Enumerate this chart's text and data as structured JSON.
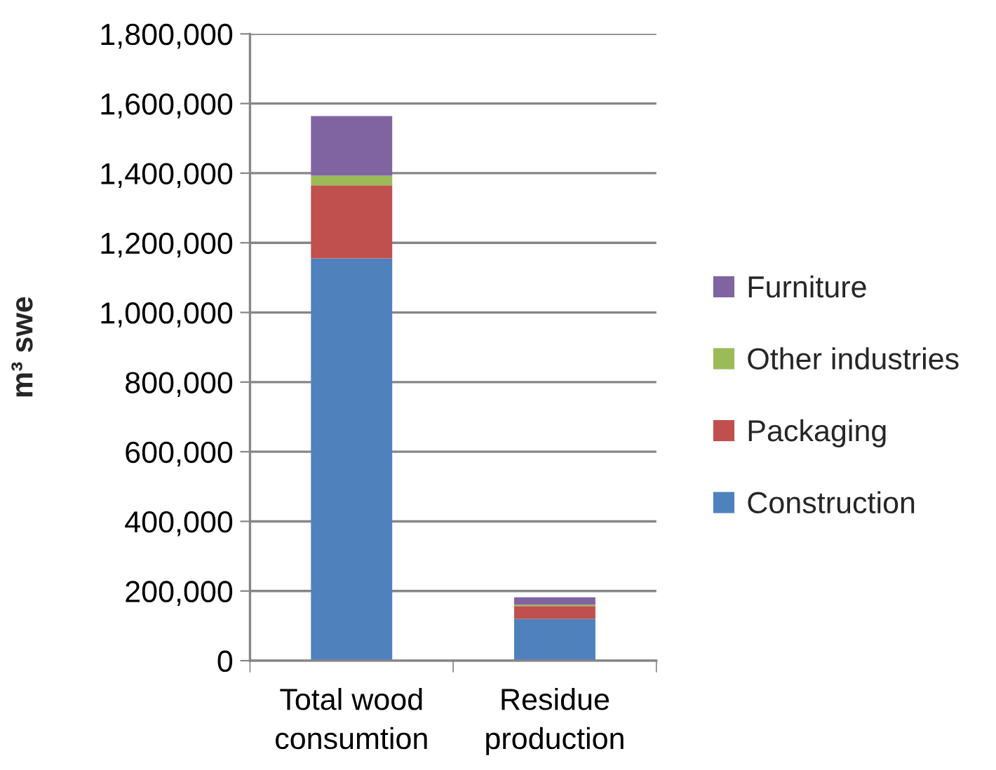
{
  "chart_data": {
    "type": "bar",
    "stacked": true,
    "ylabel": "m³ swe",
    "categories": [
      "Total wood\nconsumtion",
      "Residue\nproduction"
    ],
    "series": [
      {
        "name": "Construction",
        "color": "#4f81bd",
        "values": [
          1155000,
          120000
        ]
      },
      {
        "name": "Packaging",
        "color": "#c0504d",
        "values": [
          210000,
          37000
        ]
      },
      {
        "name": "Other industries",
        "color": "#9bbb59",
        "values": [
          28000,
          4000
        ]
      },
      {
        "name": "Furniture",
        "color": "#8064a2",
        "values": [
          171000,
          21000
        ]
      }
    ],
    "ylim": [
      0,
      1800000
    ],
    "yticks": [
      0,
      {
        "value": 200000,
        "label": "200,000"
      },
      {
        "value": 400000,
        "label": "400,000"
      },
      {
        "value": 600000,
        "label": "600,000"
      },
      {
        "value": 800000,
        "label": "800,000"
      },
      {
        "value": 1000000,
        "label": "1,000,000"
      },
      {
        "value": 1200000,
        "label": "1,200,000"
      },
      {
        "value": 1400000,
        "label": "1,400,000"
      },
      {
        "value": 1600000,
        "label": "1,600,000"
      },
      {
        "value": 1800000,
        "label": "1,800,000"
      }
    ],
    "grid": "y",
    "legend": "right"
  }
}
